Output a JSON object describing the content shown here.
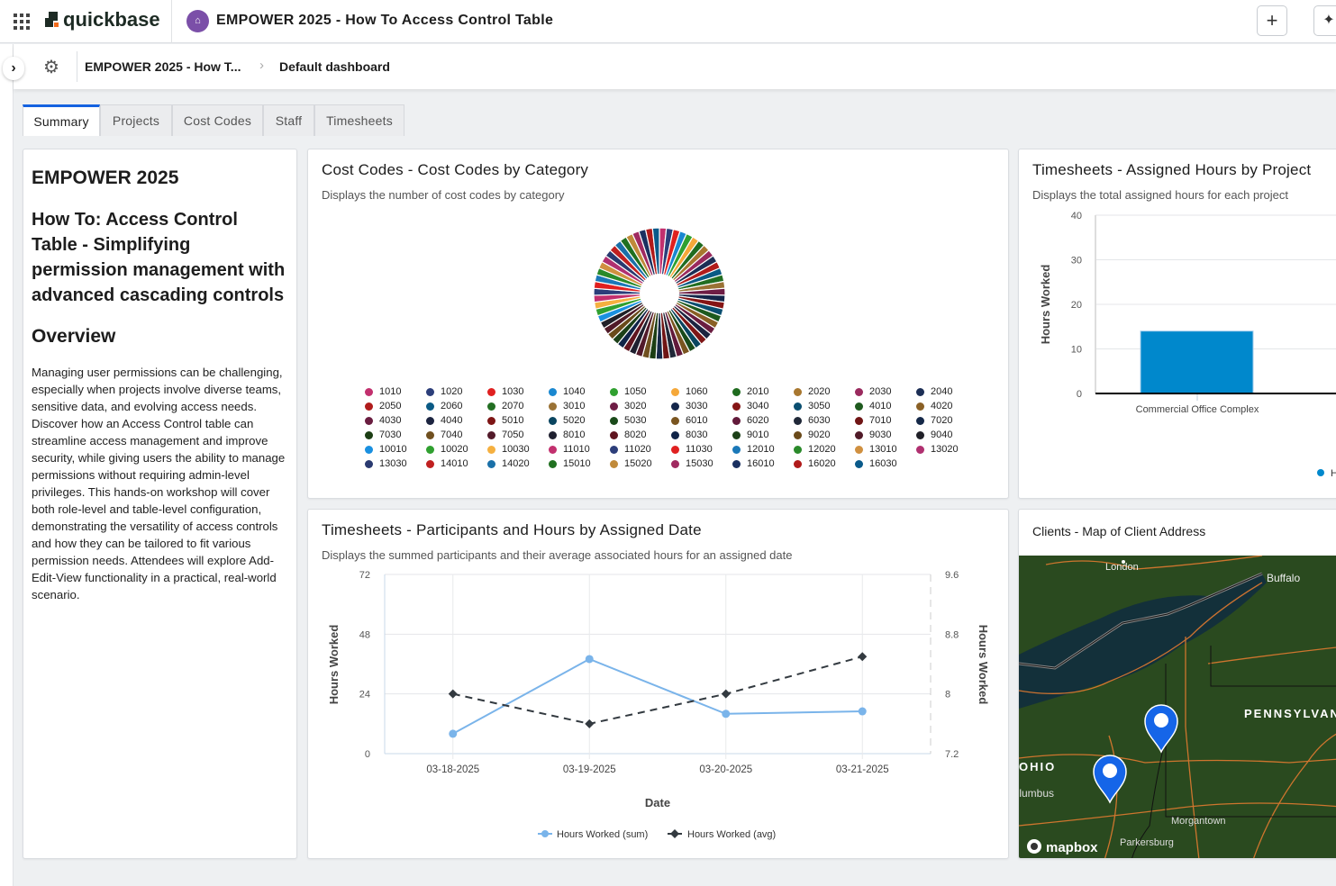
{
  "header": {
    "brand": "quickbase",
    "app_title": "EMPOWER 2025 - How To Access Control Table",
    "add_label": "+"
  },
  "breadcrumb": {
    "app": "EMPOWER 2025 - How T...",
    "page": "Default dashboard"
  },
  "tabs": [
    {
      "label": "Summary",
      "active": true
    },
    {
      "label": "Projects"
    },
    {
      "label": "Cost Codes"
    },
    {
      "label": "Staff"
    },
    {
      "label": "Timesheets"
    }
  ],
  "text_card": {
    "title": "EMPOWER 2025",
    "subtitle": "How To: Access Control Table - Simplifying permission management with advanced cascading controls",
    "section": "Overview",
    "body": "Managing user permissions can be challenging, especially when projects involve diverse teams, sensitive data, and evolving access needs. Discover how an Access Control table can streamline access management and improve security, while giving users the ability to manage permissions without requiring admin-level privileges. This hands-on workshop will cover both role-level and table-level configuration, demonstrating the versatility of access controls and how they can be tailored to fit various permission needs. Attendees will explore Add-Edit-View functionality in a practical, real-world scenario."
  },
  "cost_codes": {
    "title": "Cost Codes - Cost Codes by Category",
    "subtitle": "Displays the number of cost codes by category"
  },
  "bar_card": {
    "title": "Timesheets - Assigned Hours by Project",
    "subtitle": "Displays the total assigned hours for each project"
  },
  "line_card": {
    "title": "Timesheets - Participants and Hours by Assigned Date",
    "subtitle": "Displays the summed participants and their average associated hours for an assigned date"
  },
  "map_card": {
    "title": "Clients - Map of Client Address",
    "labels": [
      "London",
      "Buffalo",
      "PENNSYLVANIA",
      "OHIO",
      "Columbus",
      "Morgantown",
      "Parkersburg"
    ],
    "attribution": "mapbox"
  },
  "chart_data": [
    {
      "type": "pie",
      "categories": [
        "1010",
        "1020",
        "1030",
        "1040",
        "1050",
        "1060",
        "2010",
        "2020",
        "2030",
        "2040",
        "2050",
        "2060",
        "2070",
        "3010",
        "3020",
        "3030",
        "3040",
        "3050",
        "4010",
        "4020",
        "4030",
        "4040",
        "5010",
        "5020",
        "5030",
        "6010",
        "6020",
        "6030",
        "7010",
        "7020",
        "7030",
        "7040",
        "7050",
        "8010",
        "8020",
        "8030",
        "9010",
        "9020",
        "9030",
        "9040",
        "10010",
        "10020",
        "10030",
        "11010",
        "11020",
        "11030",
        "12010",
        "12020",
        "13010",
        "13020",
        "13030",
        "14010",
        "14020",
        "15010",
        "15020",
        "15030",
        "16010",
        "16020",
        "16030"
      ],
      "colors": [
        "#c2306e",
        "#2c3e7a",
        "#e02020",
        "#1a88d0",
        "#30a030",
        "#f5a83a",
        "#1f6b1f",
        "#a8772f",
        "#9a2a5e",
        "#1c2e55",
        "#b01c1c",
        "#0a5a85",
        "#226e22",
        "#9a7235",
        "#6e1d45",
        "#14264a",
        "#851515",
        "#0a4e70",
        "#1e5a1e",
        "#8a6025",
        "#6a1d40",
        "#1c2440",
        "#7e1515",
        "#0a4560",
        "#1a4a1a",
        "#7a5520",
        "#621a3a",
        "#202838",
        "#701515",
        "#152848",
        "#1c3e14",
        "#705020",
        "#521a2a",
        "#1f2030",
        "#601520",
        "#102448",
        "#1c4018",
        "#6a4a1a",
        "#501a28",
        "#202028",
        "#1a90e0",
        "#30a030",
        "#f5b040",
        "#c2306e",
        "#2c3e7a",
        "#e02020",
        "#1a78b8",
        "#2a8a2a",
        "#d09040",
        "#b03070",
        "#2a3a70",
        "#c02020",
        "#1a70a8",
        "#207020",
        "#c08a3a",
        "#a02a60",
        "#1a3060",
        "#b01a1a",
        "#0a5a8a"
      ],
      "values": "each category 1",
      "legend": "bottom"
    },
    {
      "type": "bar",
      "categories": [
        "Commercial Office Complex"
      ],
      "values": [
        14
      ],
      "ylabel": "Hours Worked",
      "ylim": [
        0,
        40
      ],
      "yticks": [
        0,
        10,
        20,
        30,
        40
      ],
      "color": "#0088cc",
      "legend": [
        "Hours Worked"
      ],
      "grid": true
    },
    {
      "type": "line",
      "x": [
        "03-18-2025",
        "03-19-2025",
        "03-20-2025",
        "03-21-2025"
      ],
      "xlabel": "Date",
      "ylabel": "Hours Worked",
      "y2label": "Hours Worked",
      "ylim": [
        0,
        72
      ],
      "yticks": [
        0,
        24,
        48,
        72
      ],
      "y2lim": [
        7.2,
        9.6
      ],
      "y2ticks": [
        "7.2",
        "8",
        "8.8",
        "9.6"
      ],
      "series": [
        {
          "name": "Hours Worked (sum)",
          "values": [
            8,
            38,
            16,
            17
          ],
          "axis": "left",
          "color": "#7ab4ea",
          "style": "solid"
        },
        {
          "name": "Hours Worked (avg)",
          "values": [
            8.0,
            7.6,
            8.0,
            8.5
          ],
          "axis": "right",
          "color": "#333a40",
          "style": "dashed"
        }
      ],
      "legend": "bottom",
      "grid": true
    }
  ]
}
